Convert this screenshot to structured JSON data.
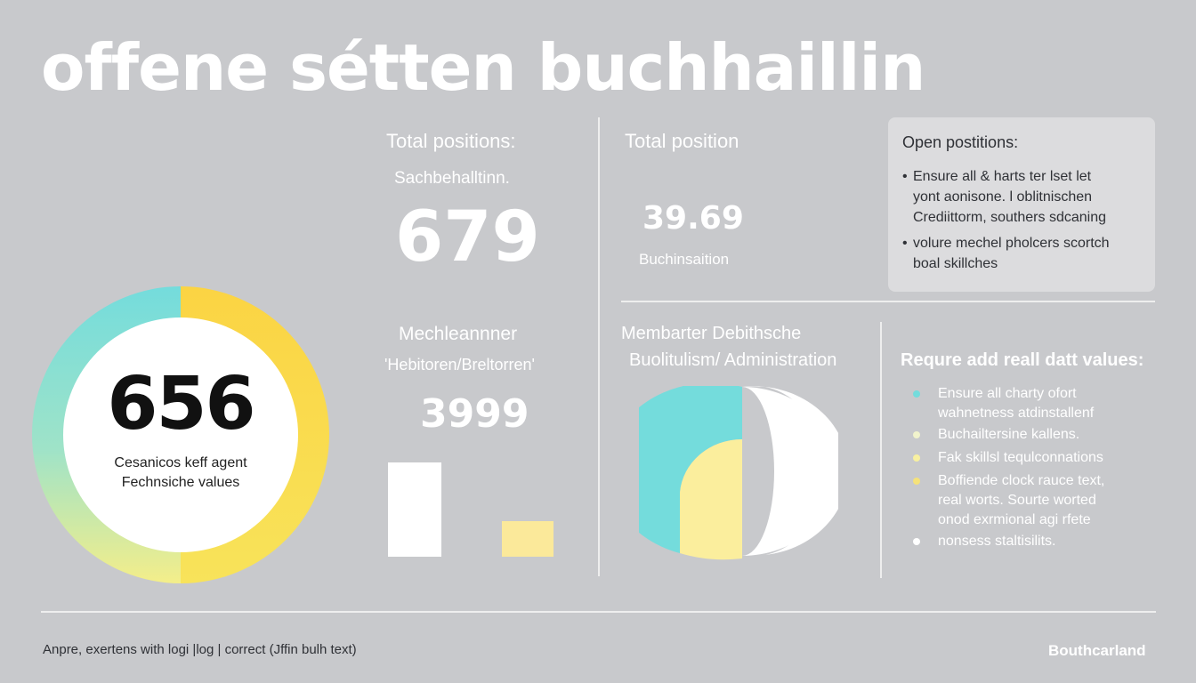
{
  "header": {
    "title": "offene sétten buchhaillin"
  },
  "donut": {
    "value": "656",
    "caption_line1": "Cesanicos keff agent",
    "caption_line2": "Fechnsiche values",
    "colors": {
      "cyan": "#74dcdc",
      "yellow": "#fbd443",
      "light_yellow": "#f4ee8a"
    }
  },
  "kpi_left": {
    "label": "Total positions:",
    "sub": "Sachbehalltinn.",
    "value": "679"
  },
  "kpi_right": {
    "label": "Total position",
    "value": "39.69",
    "sub": "Buchinsaition"
  },
  "card": {
    "title": "Open postitions:",
    "items": [
      {
        "bullet": "•",
        "line1": "Ensure all & harts ter lset let",
        "line2": "yont aonisone. l oblitnischen",
        "line3": "Crediittorm, southers sdcaning"
      },
      {
        "bullet": "•",
        "line1": "volure mechel pholcers scortch",
        "line2": "boal skillches"
      }
    ]
  },
  "middle": {
    "label": "Mechleannner",
    "sub": "'Hebitoren/Breltorren'",
    "value": "3999"
  },
  "bars": {
    "values": [
      100,
      38
    ]
  },
  "right_mid": {
    "label1": "Membarter Debithsche",
    "label2": "Buolitulism/ Administration"
  },
  "half_donut": {
    "colors": {
      "cyan": "#74dcdc",
      "yellow": "#fbee9d",
      "white": "#ffffff"
    }
  },
  "requirements": {
    "title": "Requre add reall datt values:",
    "items": [
      {
        "color": "#74dcdc",
        "line1": "Ensure all charty ofort",
        "line2": "wahnetness atdinstallenf"
      },
      {
        "color": "#f1f3cc",
        "line1": "Buchailtersine kallens."
      },
      {
        "color": "#f8f0a0",
        "line1": "Fak skillsl tequlconnations"
      },
      {
        "color": "#f5e27a",
        "line1": "Boffiende clock rauce text,",
        "line2": "real worts. Sourte worted",
        "line3": "onod exrmional agi rfete"
      },
      {
        "color": "#ffffff",
        "line1": "nonsess staltisilits."
      }
    ]
  },
  "footer": {
    "text": "Anpre, exertens with logi |log | correct (Jffin bulh text)",
    "brand": "Bouthcarland"
  }
}
